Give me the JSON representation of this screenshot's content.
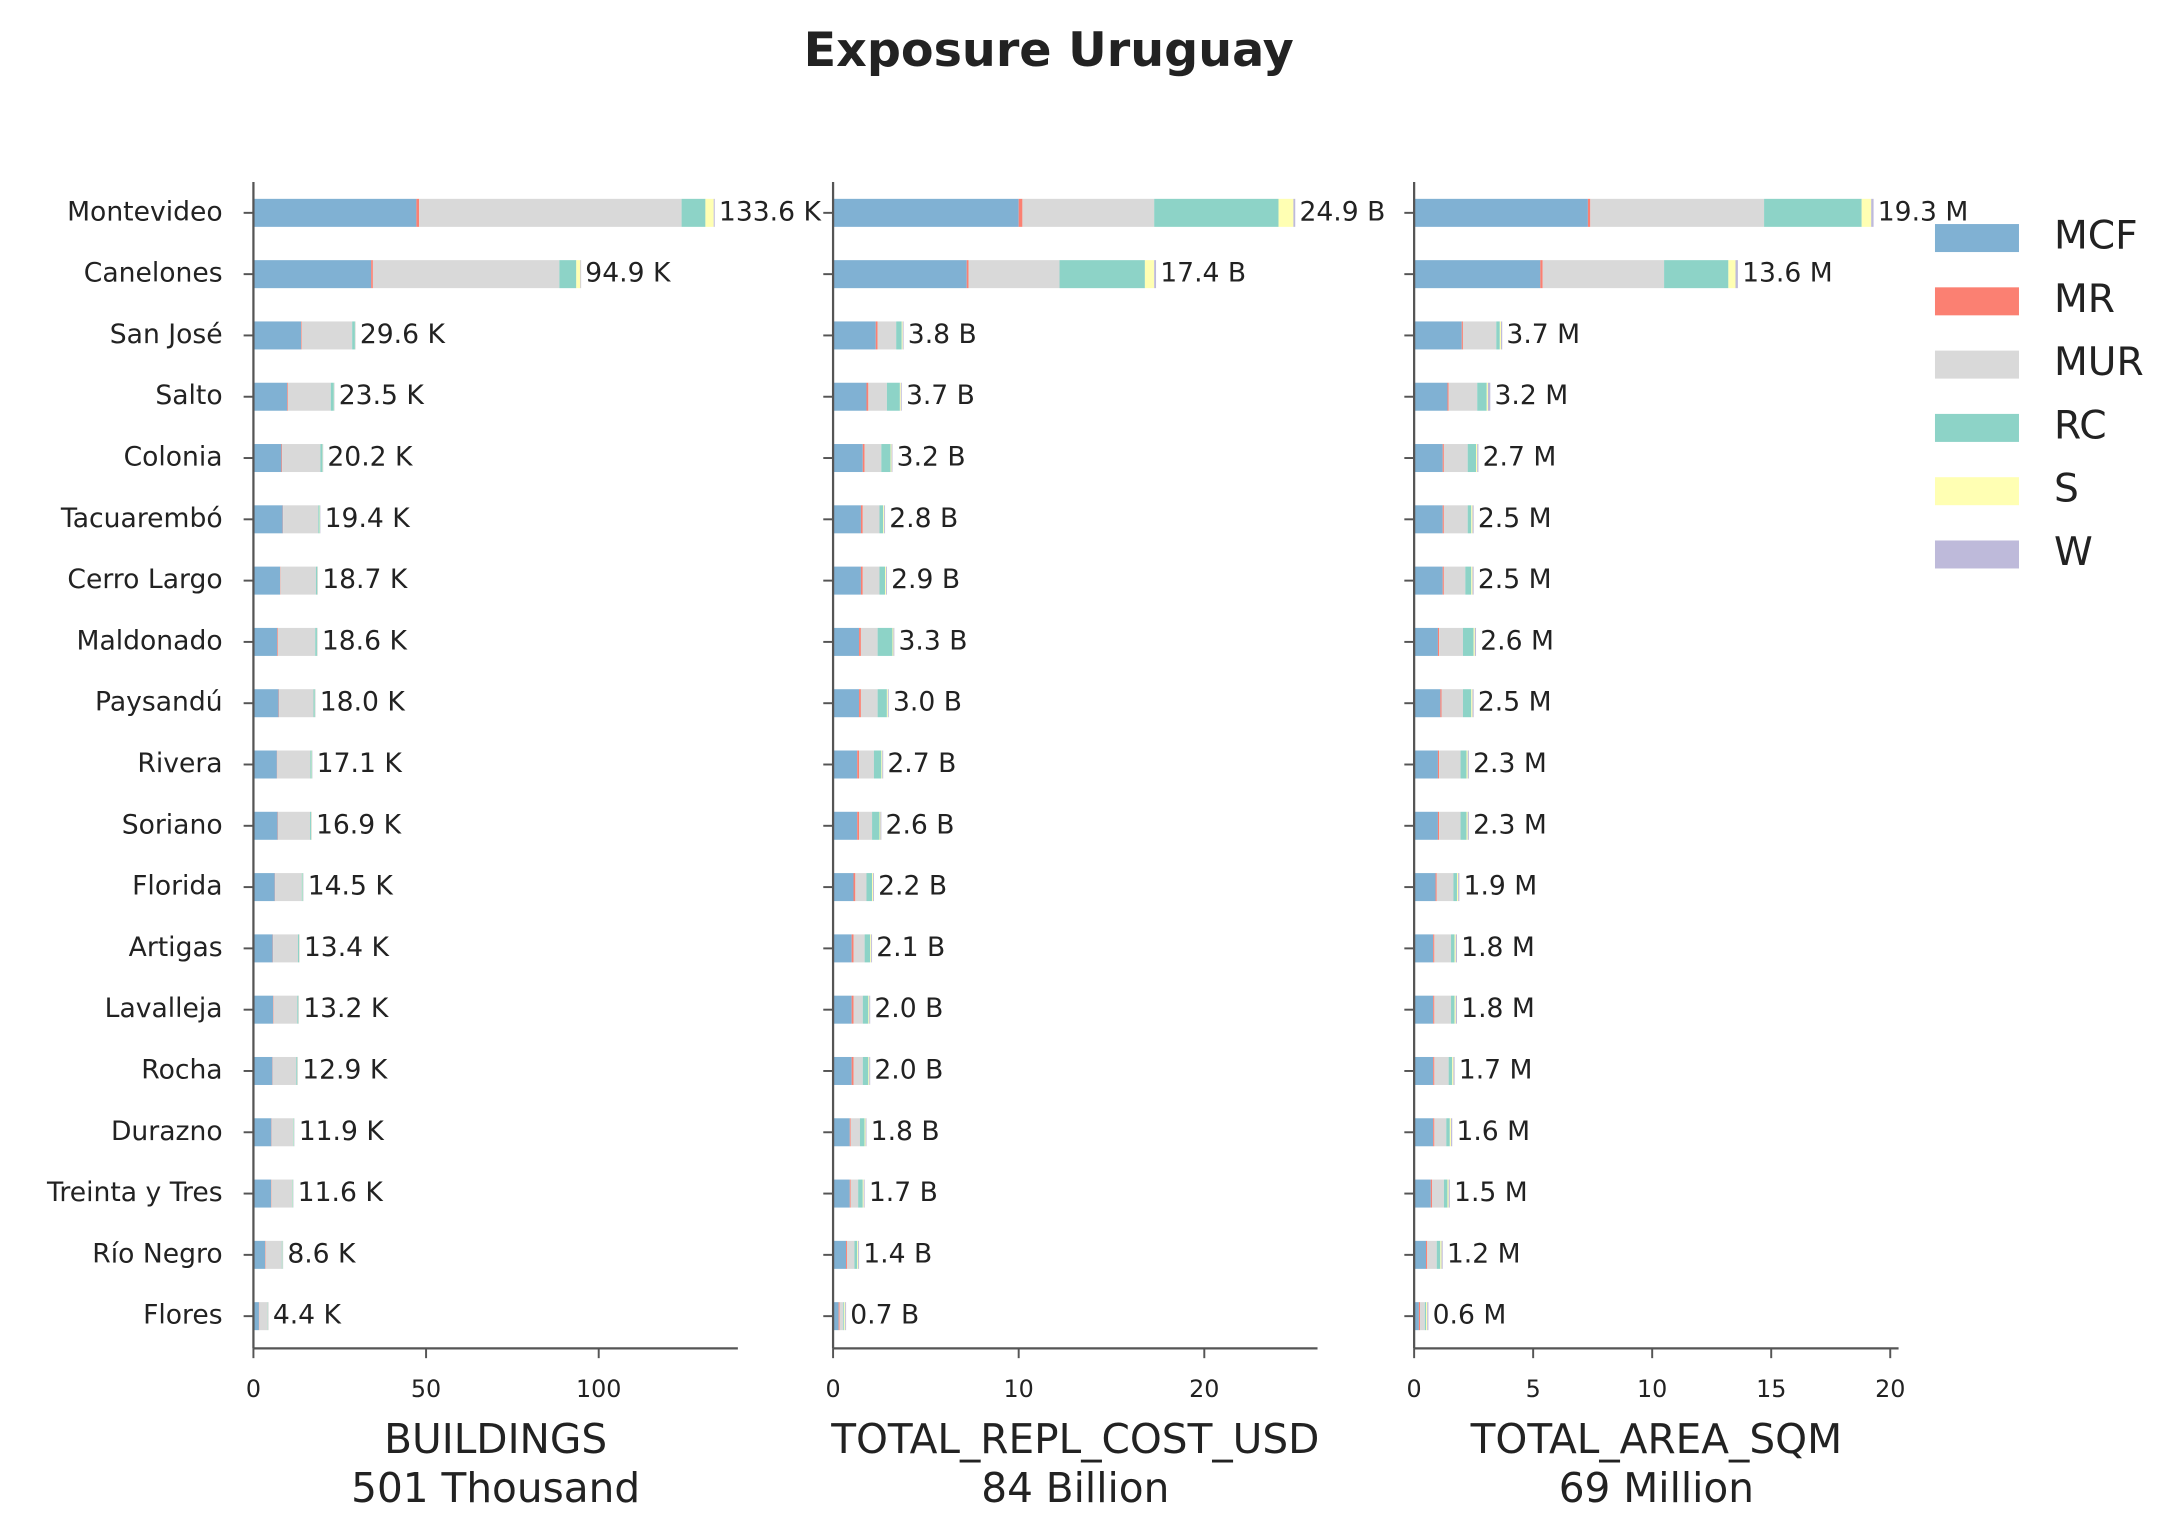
{
  "title": "Exposure Uruguay",
  "chart_data": [
    {
      "type": "bar",
      "orientation": "horizontal",
      "xlabel": "BUILDINGS",
      "xlabel_sub": "501 Thousand",
      "categories": [
        "Montevideo",
        "Canelones",
        "San José",
        "Salto",
        "Colonia",
        "Tacuarembó",
        "Cerro Largo",
        "Maldonado",
        "Paysandú",
        "Rivera",
        "Soriano",
        "Florida",
        "Artigas",
        "Lavalleja",
        "Rocha",
        "Durazno",
        "Treinta y Tres",
        "Río Negro",
        "Flores"
      ],
      "xlim": [
        0,
        140.3
      ],
      "xticks": [
        0,
        50,
        100
      ],
      "series": [
        {
          "name": "MCF",
          "color": "#80b1d3",
          "values": [
            47.2,
            34.1,
            13.8,
            9.8,
            8.1,
            8.5,
            7.7,
            6.9,
            7.3,
            6.8,
            7.0,
            6.2,
            5.6,
            5.7,
            5.5,
            5.2,
            5.1,
            3.4,
            1.6
          ]
        },
        {
          "name": "MR",
          "color": "#fb8072",
          "values": [
            0.8,
            0.5,
            0.2,
            0.2,
            0.2,
            0.1,
            0.1,
            0.2,
            0.1,
            0.1,
            0.1,
            0.1,
            0.1,
            0.1,
            0.1,
            0.1,
            0.1,
            0.1,
            0.1
          ]
        },
        {
          "name": "MUR",
          "color": "#d9d9d9",
          "values": [
            76,
            54,
            14.6,
            12.4,
            11.1,
            10.2,
            10.3,
            10.8,
            10.0,
            9.6,
            9.3,
            7.7,
            7.2,
            6.9,
            6.8,
            6.2,
            6.0,
            4.7,
            2.4
          ]
        },
        {
          "name": "RC",
          "color": "#8dd3c7",
          "values": [
            6.9,
            4.9,
            0.8,
            0.9,
            0.6,
            0.4,
            0.4,
            0.5,
            0.4,
            0.4,
            0.3,
            0.3,
            0.3,
            0.3,
            0.3,
            0.2,
            0.2,
            0.2,
            0.1
          ]
        },
        {
          "name": "S",
          "color": "#ffffb3",
          "values": [
            2.4,
            1.2,
            0.1,
            0.1,
            0.1,
            0.1,
            0.1,
            0.1,
            0.1,
            0.1,
            0.1,
            0.1,
            0.1,
            0.1,
            0.1,
            0.1,
            0.1,
            0.1,
            0.1
          ]
        },
        {
          "name": "W",
          "color": "#bebada",
          "values": [
            0.3,
            0.2,
            0.1,
            0.1,
            0.1,
            0.1,
            0.1,
            0.1,
            0.1,
            0.1,
            0.1,
            0.1,
            0.1,
            0.1,
            0.1,
            0.1,
            0.1,
            0.1,
            0.1
          ]
        }
      ],
      "totals": [
        133.6,
        94.9,
        29.6,
        23.5,
        20.2,
        19.4,
        18.7,
        18.6,
        18.0,
        17.1,
        16.9,
        14.5,
        13.4,
        13.2,
        12.9,
        11.9,
        11.6,
        8.6,
        4.4
      ],
      "value_labels": [
        "133.6 K",
        "94.9 K",
        "29.6 K",
        "23.5 K",
        "20.2 K",
        "19.4 K",
        "18.7 K",
        "18.6 K",
        "18.0 K",
        "17.1 K",
        "16.9 K",
        "14.5 K",
        "13.4 K",
        "13.2 K",
        "12.9 K",
        "11.9 K",
        "11.6 K",
        "8.6 K",
        "4.4 K"
      ]
    },
    {
      "type": "bar",
      "orientation": "horizontal",
      "xlabel": "TOTAL_REPL_COST_USD",
      "xlabel_sub": "84 Billion",
      "xlim": [
        0,
        26.1
      ],
      "xticks": [
        0,
        10,
        20
      ],
      "series": [
        {
          "name": "MCF",
          "color": "#80b1d3",
          "values": [
            10.0,
            7.2,
            2.3,
            1.8,
            1.6,
            1.5,
            1.5,
            1.4,
            1.4,
            1.3,
            1.3,
            1.1,
            1.0,
            1.0,
            1.0,
            0.9,
            0.9,
            0.7,
            0.3
          ]
        },
        {
          "name": "MR",
          "color": "#fb8072",
          "values": [
            0.2,
            0.1,
            0.1,
            0.1,
            0.1,
            0.1,
            0.1,
            0.1,
            0.1,
            0.1,
            0.1,
            0.1,
            0.1,
            0.1,
            0.1,
            0.05,
            0.05,
            0.05,
            0.05
          ]
        },
        {
          "name": "MUR",
          "color": "#d9d9d9",
          "values": [
            7.1,
            4.9,
            1.0,
            1.0,
            0.9,
            0.9,
            0.9,
            0.9,
            0.9,
            0.8,
            0.7,
            0.6,
            0.6,
            0.5,
            0.5,
            0.5,
            0.4,
            0.4,
            0.2
          ]
        },
        {
          "name": "RC",
          "color": "#8dd3c7",
          "values": [
            6.7,
            4.6,
            0.3,
            0.7,
            0.5,
            0.2,
            0.3,
            0.8,
            0.5,
            0.4,
            0.4,
            0.3,
            0.3,
            0.3,
            0.3,
            0.25,
            0.25,
            0.15,
            0.05
          ]
        },
        {
          "name": "S",
          "color": "#ffffb3",
          "values": [
            0.8,
            0.5,
            0.05,
            0.05,
            0.05,
            0.05,
            0.05,
            0.05,
            0.05,
            0.05,
            0.05,
            0.05,
            0.05,
            0.05,
            0.05,
            0.05,
            0.05,
            0.05,
            0.05
          ]
        },
        {
          "name": "W",
          "color": "#bebada",
          "values": [
            0.1,
            0.1,
            0.05,
            0.05,
            0.05,
            0.05,
            0.05,
            0.05,
            0.05,
            0.05,
            0.05,
            0.05,
            0.05,
            0.05,
            0.05,
            0.05,
            0.05,
            0.05,
            0.05
          ]
        }
      ],
      "totals": [
        24.9,
        17.4,
        3.8,
        3.7,
        3.2,
        2.8,
        2.9,
        3.3,
        3.0,
        2.7,
        2.6,
        2.2,
        2.1,
        2.0,
        2.0,
        1.8,
        1.7,
        1.4,
        0.7
      ],
      "value_labels": [
        "24.9 B",
        "17.4 B",
        "3.8 B",
        "3.7 B",
        "3.2 B",
        "2.8 B",
        "2.9 B",
        "3.3 B",
        "3.0 B",
        "2.7 B",
        "2.6 B",
        "2.2 B",
        "2.1 B",
        "2.0 B",
        "2.0 B",
        "1.8 B",
        "1.7 B",
        "1.4 B",
        "0.7 B"
      ]
    },
    {
      "type": "bar",
      "orientation": "horizontal",
      "xlabel": "TOTAL_AREA_SQM",
      "xlabel_sub": "69 Million",
      "xlim": [
        0,
        20.35
      ],
      "xticks": [
        0,
        5,
        10,
        15,
        20
      ],
      "legend": "upper right outside",
      "series": [
        {
          "name": "MCF",
          "color": "#80b1d3",
          "values": [
            7.3,
            5.3,
            2.0,
            1.4,
            1.2,
            1.2,
            1.2,
            1.0,
            1.1,
            1.0,
            1.0,
            0.9,
            0.8,
            0.8,
            0.8,
            0.8,
            0.7,
            0.5,
            0.2
          ]
        },
        {
          "name": "MR",
          "color": "#fb8072",
          "values": [
            0.1,
            0.1,
            0.05,
            0.05,
            0.05,
            0.05,
            0.05,
            0.05,
            0.05,
            0.05,
            0.05,
            0.05,
            0.05,
            0.05,
            0.05,
            0.05,
            0.05,
            0.05,
            0.05
          ]
        },
        {
          "name": "MUR",
          "color": "#d9d9d9",
          "values": [
            7.3,
            5.1,
            1.4,
            1.2,
            1.0,
            1.0,
            0.9,
            1.0,
            0.9,
            0.9,
            0.9,
            0.7,
            0.7,
            0.7,
            0.6,
            0.5,
            0.5,
            0.4,
            0.2
          ]
        },
        {
          "name": "RC",
          "color": "#8dd3c7",
          "values": [
            4.1,
            2.7,
            0.15,
            0.4,
            0.35,
            0.15,
            0.25,
            0.45,
            0.35,
            0.25,
            0.25,
            0.15,
            0.15,
            0.15,
            0.15,
            0.15,
            0.15,
            0.15,
            0.05
          ]
        },
        {
          "name": "S",
          "color": "#ffffb3",
          "values": [
            0.4,
            0.3,
            0.05,
            0.05,
            0.05,
            0.05,
            0.05,
            0.05,
            0.05,
            0.05,
            0.05,
            0.05,
            0.05,
            0.05,
            0.05,
            0.05,
            0.05,
            0.05,
            0.05
          ]
        },
        {
          "name": "W",
          "color": "#bebada",
          "values": [
            0.1,
            0.1,
            0.05,
            0.1,
            0.05,
            0.05,
            0.05,
            0.05,
            0.05,
            0.05,
            0.05,
            0.05,
            0.05,
            0.05,
            0.05,
            0.05,
            0.05,
            0.05,
            0.05
          ]
        }
      ],
      "totals": [
        19.3,
        13.6,
        3.7,
        3.2,
        2.7,
        2.5,
        2.5,
        2.6,
        2.5,
        2.3,
        2.3,
        1.9,
        1.8,
        1.8,
        1.7,
        1.6,
        1.5,
        1.2,
        0.6
      ],
      "value_labels": [
        "19.3 M",
        "13.6 M",
        "3.7 M",
        "3.2 M",
        "2.7 M",
        "2.5 M",
        "2.5 M",
        "2.6 M",
        "2.5 M",
        "2.3 M",
        "2.3 M",
        "1.9 M",
        "1.8 M",
        "1.8 M",
        "1.7 M",
        "1.6 M",
        "1.5 M",
        "1.2 M",
        "0.6 M"
      ]
    }
  ]
}
